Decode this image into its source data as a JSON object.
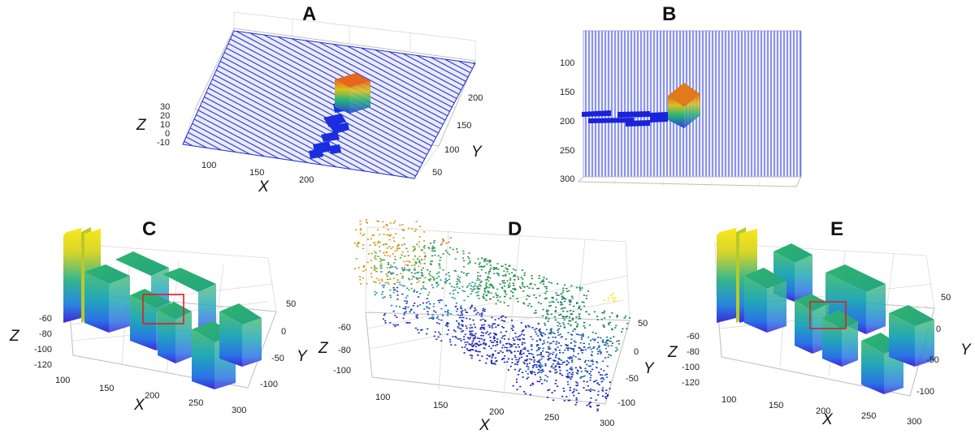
{
  "figure": {
    "colors": {
      "mesh": "#1f2dcf",
      "pointBlue": "#1b1fb8",
      "yellow": "#f7e81c",
      "green": "#2db36b",
      "blue": "#3b2bd9",
      "orange": "#e88a1a",
      "highlight": "#e01f1f"
    }
  },
  "chart_data": [
    {
      "panel": "A",
      "type": "surface",
      "xlabel": "X",
      "ylabel": "Y",
      "zlabel": "Z",
      "xticks": [
        "100",
        "150",
        "200"
      ],
      "yticks": [
        "50",
        "100",
        "150",
        "200"
      ],
      "zticks": [
        "30",
        "20",
        "10",
        "0",
        "-10"
      ],
      "grid": true
    },
    {
      "panel": "B",
      "type": "surface",
      "view": "top",
      "yticks": [
        "100",
        "150",
        "200",
        "250",
        "300"
      ],
      "grid": true
    },
    {
      "panel": "C",
      "type": "surface",
      "xlabel": "X",
      "ylabel": "Y",
      "zlabel": "Z",
      "xticks": [
        "100",
        "150",
        "200",
        "250",
        "300"
      ],
      "yticks": [
        "50",
        "0",
        "-50",
        "-100"
      ],
      "zticks": [
        "-60",
        "-80",
        "-100",
        "-120"
      ],
      "grid": true,
      "highlight_box": true
    },
    {
      "panel": "D",
      "type": "scatter",
      "xlabel": "X",
      "ylabel": "Y",
      "zlabel": "Z",
      "xticks": [
        "100",
        "150",
        "200",
        "250",
        "300"
      ],
      "yticks": [
        "50",
        "0",
        "-50",
        "-100"
      ],
      "zticks": [
        "-60",
        "-80",
        "-100"
      ],
      "grid": true
    },
    {
      "panel": "E",
      "type": "surface",
      "xlabel": "X",
      "ylabel": "Y",
      "zlabel": "Z",
      "xticks": [
        "100",
        "150",
        "200",
        "250",
        "300"
      ],
      "yticks": [
        "50",
        "0",
        "-50",
        "-100"
      ],
      "zticks": [
        "-60",
        "-80",
        "-100",
        "-120"
      ],
      "grid": true,
      "highlight_box": true
    }
  ]
}
